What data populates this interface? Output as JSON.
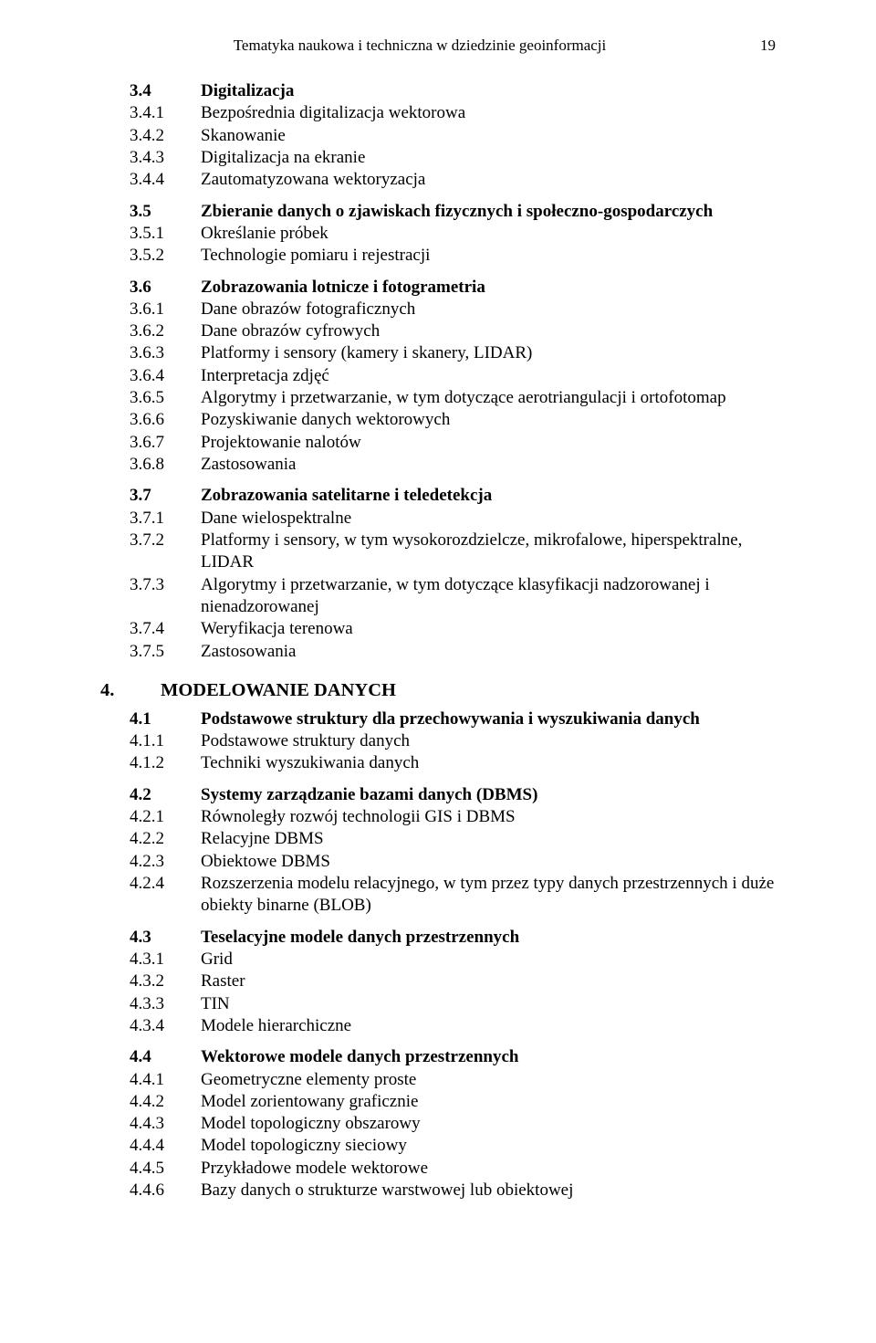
{
  "header": {
    "title": "Tematyka naukowa i techniczna w dziedzinie geoinformacji",
    "page_number": "19"
  },
  "sections": [
    {
      "entries": [
        {
          "num": "3.4",
          "text": "Digitalizacja",
          "bold": true
        },
        {
          "num": "3.4.1",
          "text": "Bezpośrednia digitalizacja wektorowa"
        },
        {
          "num": "3.4.2",
          "text": "Skanowanie"
        },
        {
          "num": "3.4.3",
          "text": "Digitalizacja na ekranie"
        },
        {
          "num": "3.4.4",
          "text": "Zautomatyzowana wektoryzacja"
        }
      ]
    },
    {
      "entries": [
        {
          "num": "3.5",
          "text": "Zbieranie danych o zjawiskach fizycznych i społeczno-gospodarczych",
          "bold": true
        },
        {
          "num": "3.5.1",
          "text": "Określanie próbek"
        },
        {
          "num": "3.5.2",
          "text": "Technologie pomiaru i rejestracji"
        }
      ]
    },
    {
      "entries": [
        {
          "num": "3.6",
          "text": "Zobrazowania lotnicze i fotogrametria",
          "bold": true
        },
        {
          "num": "3.6.1",
          "text": "Dane obrazów fotograficznych"
        },
        {
          "num": "3.6.2",
          "text": "Dane obrazów cyfrowych"
        },
        {
          "num": "3.6.3",
          "text": "Platformy i sensory (kamery i skanery, LIDAR)"
        },
        {
          "num": "3.6.4",
          "text": "Interpretacja zdjęć"
        },
        {
          "num": "3.6.5",
          "text": "Algorytmy i przetwarzanie, w tym dotyczące aerotriangulacji i ortofotomap"
        },
        {
          "num": "3.6.6",
          "text": "Pozyskiwanie danych wektorowych"
        },
        {
          "num": "3.6.7",
          "text": "Projektowanie nalotów"
        },
        {
          "num": "3.6.8",
          "text": "Zastosowania"
        }
      ]
    },
    {
      "entries": [
        {
          "num": "3.7",
          "text": "Zobrazowania satelitarne i teledetekcja",
          "bold": true
        },
        {
          "num": "3.7.1",
          "text": "Dane wielospektralne"
        },
        {
          "num": "3.7.2",
          "text": "Platformy i sensory, w tym wysokorozdzielcze, mikrofalowe, hiperspektralne, LIDAR"
        },
        {
          "num": "3.7.3",
          "text": "Algorytmy i przetwarzanie, w tym dotyczące klasyfikacji nadzorowanej i nienadzorowanej"
        },
        {
          "num": "3.7.4",
          "text": "Weryfikacja terenowa"
        },
        {
          "num": "3.7.5",
          "text": "Zastosowania"
        }
      ]
    }
  ],
  "chapter": {
    "num": "4.",
    "title": "MODELOWANIE DANYCH"
  },
  "sections2": [
    {
      "entries": [
        {
          "num": "4.1",
          "text": "Podstawowe struktury dla przechowywania i wyszukiwania danych",
          "bold": true
        },
        {
          "num": "4.1.1",
          "text": "Podstawowe struktury danych"
        },
        {
          "num": "4.1.2",
          "text": "Techniki wyszukiwania danych"
        }
      ]
    },
    {
      "entries": [
        {
          "num": "4.2",
          "text": "Systemy zarządzanie bazami danych (DBMS)",
          "bold": true
        },
        {
          "num": "4.2.1",
          "text": "Równoległy rozwój technologii GIS i DBMS"
        },
        {
          "num": "4.2.2",
          "text": "Relacyjne DBMS"
        },
        {
          "num": "4.2.3",
          "text": "Obiektowe DBMS"
        },
        {
          "num": "4.2.4",
          "text": "Rozszerzenia modelu relacyjnego, w tym przez typy danych przestrzennych i duże obiekty binarne (BLOB)"
        }
      ]
    },
    {
      "entries": [
        {
          "num": "4.3",
          "text": "Teselacyjne modele danych przestrzennych",
          "bold": true
        },
        {
          "num": "4.3.1",
          "text": "Grid"
        },
        {
          "num": "4.3.2",
          "text": "Raster"
        },
        {
          "num": "4.3.3",
          "text": "TIN"
        },
        {
          "num": "4.3.4",
          "text": "Modele hierarchiczne"
        }
      ]
    },
    {
      "entries": [
        {
          "num": "4.4",
          "text": "Wektorowe modele danych przestrzennych",
          "bold": true
        },
        {
          "num": "4.4.1",
          "text": "Geometryczne elementy proste"
        },
        {
          "num": "4.4.2",
          "text": "Model zorientowany graficznie"
        },
        {
          "num": "4.4.3",
          "text": "Model topologiczny obszarowy"
        },
        {
          "num": "4.4.4",
          "text": "Model topologiczny sieciowy"
        },
        {
          "num": "4.4.5",
          "text": "Przykładowe modele wektorowe"
        },
        {
          "num": "4.4.6",
          "text": "Bazy danych o strukturze warstwowej lub obiektowej"
        }
      ]
    }
  ]
}
